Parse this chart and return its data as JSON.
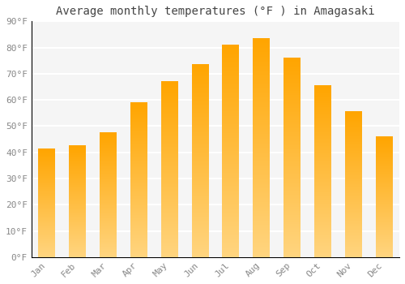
{
  "title": "Average monthly temperatures (°F ) in Amagasaki",
  "months": [
    "Jan",
    "Feb",
    "Mar",
    "Apr",
    "May",
    "Jun",
    "Jul",
    "Aug",
    "Sep",
    "Oct",
    "Nov",
    "Dec"
  ],
  "values": [
    41.5,
    42.5,
    47.5,
    59.0,
    67.0,
    73.5,
    81.0,
    83.5,
    76.0,
    65.5,
    55.5,
    46.0
  ],
  "bar_color_top": "#FFA500",
  "bar_color_bottom": "#FFD580",
  "ylim": [
    0,
    90
  ],
  "yticks": [
    0,
    10,
    20,
    30,
    40,
    50,
    60,
    70,
    80,
    90
  ],
  "ytick_labels": [
    "0°F",
    "10°F",
    "20°F",
    "30°F",
    "40°F",
    "50°F",
    "60°F",
    "70°F",
    "80°F",
    "90°F"
  ],
  "background_color": "#ffffff",
  "plot_bg_color": "#f5f5f5",
  "grid_color": "#ffffff",
  "title_fontsize": 10,
  "tick_fontsize": 8,
  "bar_width": 0.55
}
